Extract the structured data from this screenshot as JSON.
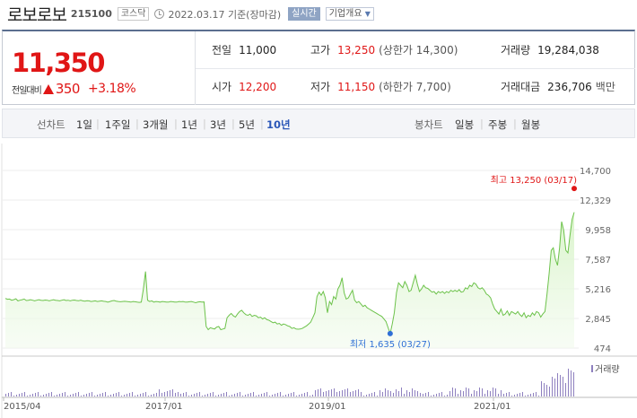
{
  "header": {
    "name": "로보로보",
    "code": "215100",
    "market": "코스닥",
    "date": "2022.03.17 기준(장마감)",
    "live_label": "실시간",
    "info_label": "기업개요"
  },
  "quote": {
    "price": "11,350",
    "diff_label": "전일대비",
    "diff_amount": "350",
    "diff_pct": "+3.18%"
  },
  "stats": {
    "prev_close": {
      "label": "전일",
      "value": "11,000"
    },
    "high": {
      "label": "고가",
      "value": "13,250",
      "sub": "(상한가 14,300)"
    },
    "volume": {
      "label": "거래량",
      "value": "19,284,038"
    },
    "open": {
      "label": "시가",
      "value": "12,200"
    },
    "low": {
      "label": "저가",
      "value": "11,150",
      "sub": "(하한가 7,700)"
    },
    "amount": {
      "label": "거래대금",
      "value": "236,706",
      "unit": "백만"
    }
  },
  "periods": {
    "line_label": "선차트",
    "line_items": [
      "1일",
      "1주일",
      "3개월",
      "1년",
      "3년",
      "5년",
      "10년"
    ],
    "active": "10년",
    "candle_label": "봉차트",
    "candle_items": [
      "일봉",
      "주봉",
      "월봉"
    ]
  },
  "chart_data": {
    "type": "area",
    "y_ticks": [
      "14,700",
      "12,329",
      "9,958",
      "7,587",
      "5,216",
      "2,845",
      "474"
    ],
    "ylim": [
      474,
      14700
    ],
    "x_ticks": [
      "2015/04",
      "2017/01",
      "2019/01",
      "2021/01"
    ],
    "high_note": "최고 13,250 (03/17)",
    "low_note": "최저 1,635 (03/27)",
    "volume_label": "거래량",
    "series": [
      {
        "values": [
          4450,
          4380,
          4400,
          4300,
          4350,
          4420,
          4250,
          4300,
          4350,
          4400,
          4280,
          4300,
          4350,
          4300,
          4250,
          4300,
          4350,
          4300,
          4280,
          4320,
          4300,
          4250,
          4300,
          4350,
          4300,
          4280,
          4250,
          4300,
          4350,
          4280,
          4300,
          4250,
          4300,
          4320,
          4280,
          4260,
          4300,
          4250,
          4230,
          4260,
          4250,
          4200,
          4230,
          4250,
          4200,
          4230,
          4250,
          4220,
          4200,
          4150,
          4200,
          4250,
          4280,
          4230,
          4200,
          4180,
          4200,
          4220,
          4200,
          4180,
          4150,
          4200,
          4180,
          4150,
          4130,
          4150,
          5200,
          6600,
          4300,
          4200,
          4250,
          4150,
          4200,
          4180,
          4150,
          4200,
          4180,
          4160,
          4150,
          4200,
          4180,
          4150,
          4150,
          4200,
          4180,
          4200,
          4150,
          4150,
          4180,
          4200,
          4150,
          4100,
          4150,
          4180,
          4150,
          4170,
          2200,
          1950,
          2100,
          2050,
          2000,
          2150,
          2200,
          1950,
          2000,
          2050,
          2900,
          3100,
          3250,
          3050,
          2950,
          3200,
          3400,
          3500,
          3300,
          3150,
          3100,
          3200,
          3000,
          3100,
          3050,
          2900,
          2950,
          2800,
          2900,
          2750,
          2700,
          2600,
          2500,
          2550,
          2400,
          2450,
          2300,
          2400,
          2350,
          2250,
          2200,
          2050,
          2100,
          2000,
          1980,
          2000,
          2050,
          2150,
          2250,
          2400,
          2550,
          2900,
          3300,
          4600,
          4950,
          4700,
          5000,
          4500,
          3300,
          4200,
          3950,
          4600,
          4400,
          5200,
          5500,
          6100,
          4900,
          4400,
          4500,
          4800,
          5100,
          4300,
          4100,
          4200,
          4000,
          3800,
          3900,
          3700,
          3600,
          3500,
          3400,
          3300,
          3200,
          3100,
          3000,
          2800,
          2600,
          2100,
          1635,
          2400,
          3300,
          4900,
          5700,
          5500,
          5300,
          5800,
          5500,
          5000,
          5100,
          5700,
          6300,
          5600,
          5000,
          5200,
          5500,
          5300,
          5250,
          5100,
          4950,
          5000,
          4800,
          5000,
          4900,
          5000,
          4850,
          5000,
          4900,
          5100,
          5000,
          5100,
          5000,
          5150,
          4950,
          5000,
          5300,
          5200,
          5500,
          5400,
          5700,
          5600,
          5300,
          5200,
          5300,
          5100,
          4800,
          4700,
          4500,
          4000,
          3600,
          3400,
          3200,
          3600,
          3100,
          3200,
          3450,
          3100,
          3400,
          3300,
          3200,
          3400,
          3150,
          3000,
          3300,
          2900,
          3100,
          3000,
          3300,
          3100,
          3400,
          3300,
          2950,
          3200,
          3400,
          4800,
          6400,
          8300,
          8500,
          7600,
          7100,
          8500,
          10600,
          9900,
          8300,
          8100,
          9500,
          10800,
          11350
        ]
      }
    ]
  }
}
